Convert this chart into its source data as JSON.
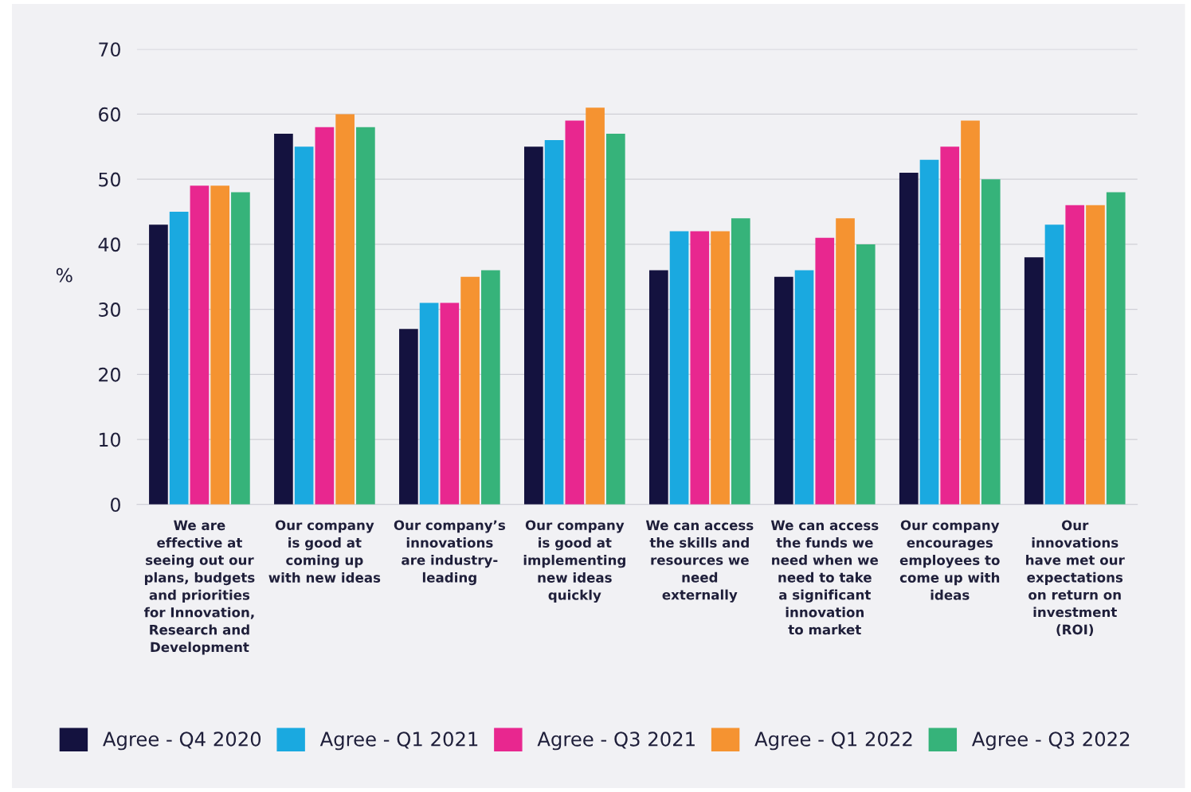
{
  "chart_data": {
    "type": "bar",
    "ylabel": "%",
    "categories": [
      "We are\neffective at\nseeing out our\nplans, budgets\nand priorities\nfor Innovation,\nResearch and\nDevelopment",
      "Our company\nis good at\ncoming up\nwith new ideas",
      "Our company’s\ninnovations\nare industry-\nleading",
      "Our company\nis good at\nimplementing\nnew ideas\nquickly",
      "We can access\nthe skills and\nresources we\nneed\nexternally",
      "We can access\nthe funds we\nneed when we\nneed to take\na significant\ninnovation\nto market",
      "Our company\nencourages\nemployees to\ncome up with\nideas",
      "Our\ninnovations\nhave met our\nexpectations\non return on\ninvestment\n(ROI)"
    ],
    "series": [
      {
        "name": "Agree - Q4 2020",
        "color": "#14123f",
        "values": [
          43,
          57,
          27,
          55,
          36,
          35,
          51,
          38
        ]
      },
      {
        "name": "Agree - Q1 2021",
        "color": "#1aa9e0",
        "values": [
          45,
          55,
          31,
          56,
          42,
          36,
          53,
          43
        ]
      },
      {
        "name": "Agree - Q3 2021",
        "color": "#e8278f",
        "values": [
          49,
          58,
          31,
          59,
          42,
          41,
          55,
          46
        ]
      },
      {
        "name": "Agree - Q1 2022",
        "color": "#f59331",
        "values": [
          49,
          60,
          35,
          61,
          42,
          44,
          59,
          46
        ]
      },
      {
        "name": "Agree - Q3 2022",
        "color": "#36b37a",
        "values": [
          48,
          58,
          36,
          57,
          44,
          40,
          50,
          48
        ]
      }
    ],
    "ylim": [
      0,
      70
    ],
    "yticks": [
      0,
      10,
      20,
      30,
      40,
      50,
      60,
      70
    ],
    "grid": "y",
    "legend": "bottom"
  }
}
